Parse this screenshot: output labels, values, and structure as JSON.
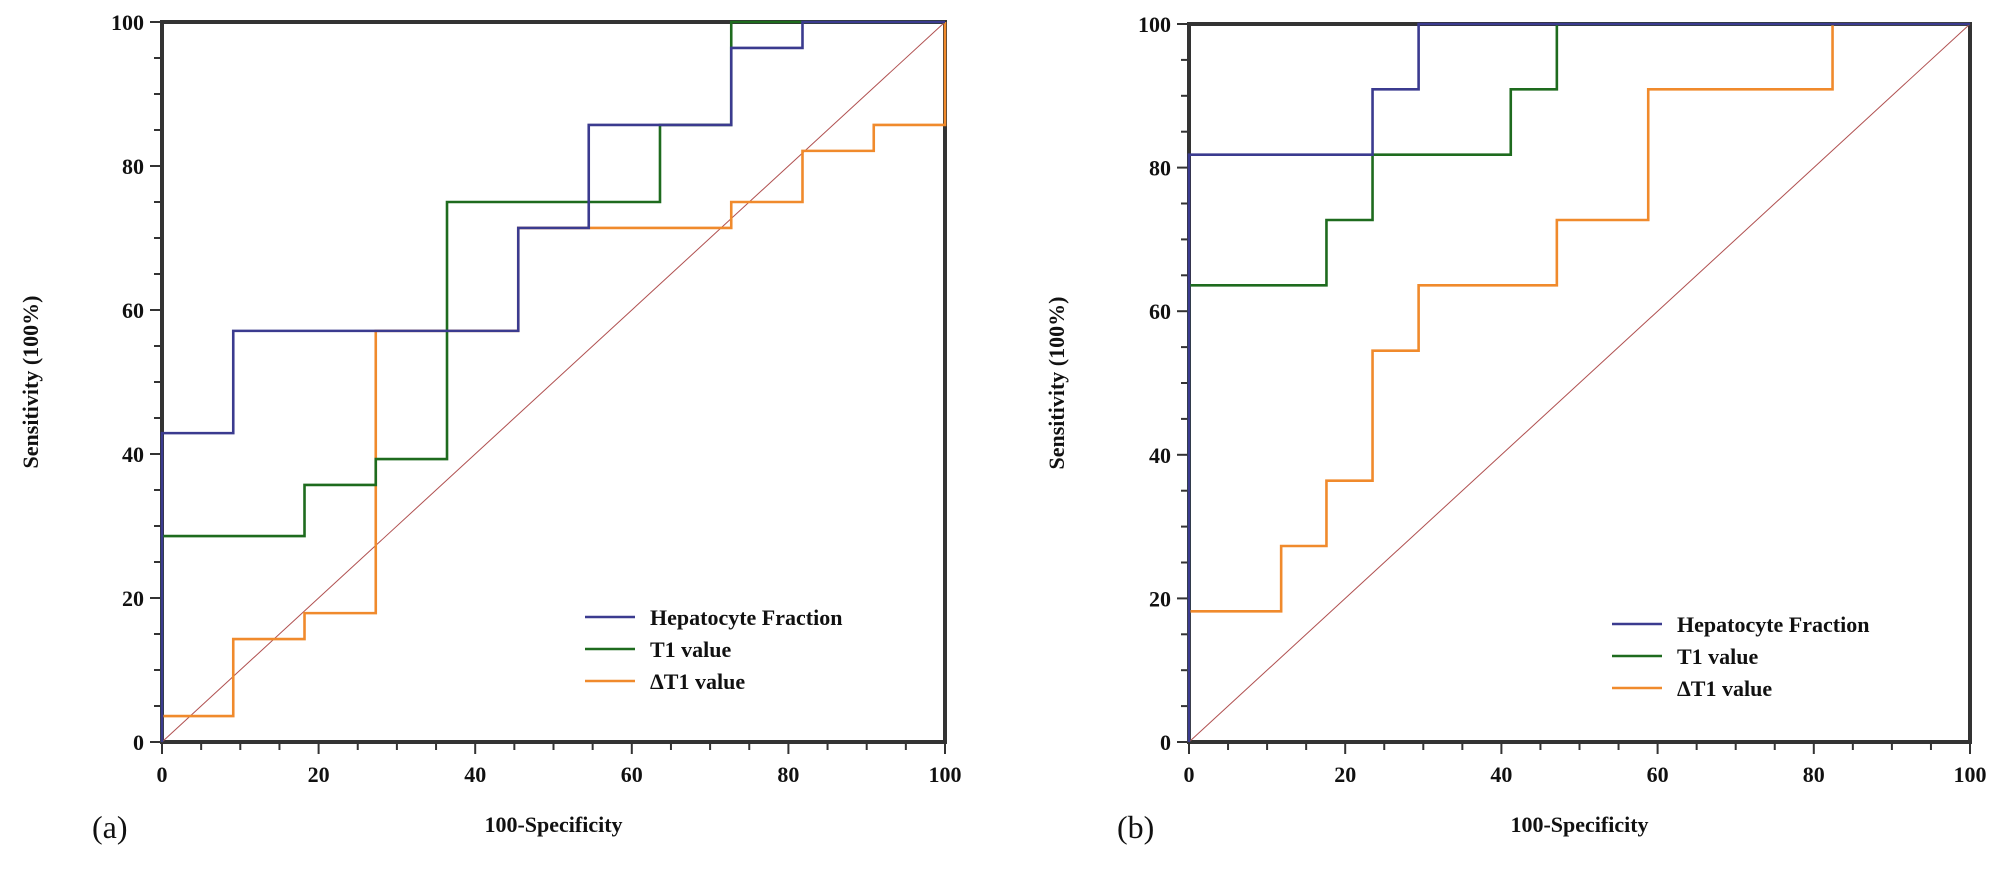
{
  "chart_data": [
    {
      "type": "line",
      "panel_label": "(a)",
      "title": "",
      "xlabel": "100-Specificity",
      "ylabel": "Sensitivity (100%)",
      "xlim": [
        0,
        100
      ],
      "ylim": [
        0,
        100
      ],
      "xticks": [
        "0",
        "20",
        "40",
        "60",
        "80",
        "100"
      ],
      "yticks": [
        "0",
        "20",
        "40",
        "60",
        "80",
        "100"
      ],
      "legend_position": "bottom-right",
      "reference_line": {
        "name": "Reference line",
        "color": "#b05050",
        "points": [
          [
            0,
            0
          ],
          [
            100,
            100
          ]
        ]
      },
      "series": [
        {
          "name": "Hepatocyte Fraction",
          "color": "#3b3b8f",
          "points": [
            [
              0,
              0
            ],
            [
              0,
              42.9
            ],
            [
              9.1,
              42.9
            ],
            [
              9.1,
              57.1
            ],
            [
              27.3,
              57.1
            ],
            [
              45.5,
              57.1
            ],
            [
              45.5,
              71.4
            ],
            [
              54.5,
              71.4
            ],
            [
              54.5,
              85.7
            ],
            [
              72.7,
              85.7
            ],
            [
              72.7,
              96.4
            ],
            [
              81.8,
              96.4
            ],
            [
              81.8,
              100
            ],
            [
              100,
              100
            ]
          ]
        },
        {
          "name": "T1 value",
          "color": "#1e6b1e",
          "points": [
            [
              0,
              0
            ],
            [
              0,
              28.6
            ],
            [
              18.2,
              28.6
            ],
            [
              18.2,
              35.7
            ],
            [
              27.3,
              35.7
            ],
            [
              27.3,
              39.3
            ],
            [
              36.4,
              39.3
            ],
            [
              36.4,
              75.0
            ],
            [
              63.6,
              75.0
            ],
            [
              63.6,
              85.7
            ],
            [
              72.7,
              85.7
            ],
            [
              72.7,
              100
            ],
            [
              100,
              100
            ]
          ]
        },
        {
          "name": "ΔT1 value",
          "color": "#f08a2c",
          "points": [
            [
              0,
              0
            ],
            [
              0,
              3.6
            ],
            [
              9.1,
              3.6
            ],
            [
              9.1,
              14.3
            ],
            [
              18.2,
              14.3
            ],
            [
              18.2,
              17.9
            ],
            [
              27.3,
              17.9
            ],
            [
              27.3,
              57.1
            ],
            [
              45.5,
              57.1
            ],
            [
              45.5,
              71.4
            ],
            [
              72.7,
              71.4
            ],
            [
              72.7,
              75.0
            ],
            [
              81.8,
              75.0
            ],
            [
              81.8,
              82.1
            ],
            [
              90.9,
              82.1
            ],
            [
              90.9,
              85.7
            ],
            [
              100,
              85.7
            ],
            [
              100,
              100
            ]
          ]
        }
      ]
    },
    {
      "type": "line",
      "panel_label": "(b)",
      "title": "",
      "xlabel": "100-Specificity",
      "ylabel": "Sensitivity (100%)",
      "xlim": [
        0,
        100
      ],
      "ylim": [
        0,
        100
      ],
      "xticks": [
        "0",
        "20",
        "40",
        "60",
        "80",
        "100"
      ],
      "yticks": [
        "0",
        "20",
        "40",
        "60",
        "80",
        "100"
      ],
      "legend_position": "bottom-right",
      "reference_line": {
        "name": "Reference line",
        "color": "#b05050",
        "points": [
          [
            0,
            0
          ],
          [
            100,
            100
          ]
        ]
      },
      "series": [
        {
          "name": "Hepatocyte Fraction",
          "color": "#3b3b8f",
          "points": [
            [
              0,
              0
            ],
            [
              0,
              81.8
            ],
            [
              23.5,
              81.8
            ],
            [
              23.5,
              90.9
            ],
            [
              29.4,
              90.9
            ],
            [
              29.4,
              100
            ],
            [
              100,
              100
            ]
          ]
        },
        {
          "name": "T1 value",
          "color": "#1e6b1e",
          "points": [
            [
              0,
              0
            ],
            [
              0,
              63.6
            ],
            [
              17.6,
              63.6
            ],
            [
              17.6,
              72.7
            ],
            [
              23.5,
              72.7
            ],
            [
              23.5,
              81.8
            ],
            [
              41.2,
              81.8
            ],
            [
              41.2,
              90.9
            ],
            [
              47.1,
              90.9
            ],
            [
              47.1,
              100
            ],
            [
              100,
              100
            ]
          ]
        },
        {
          "name": "ΔT1 value",
          "color": "#f08a2c",
          "points": [
            [
              0,
              0
            ],
            [
              0,
              18.2
            ],
            [
              11.8,
              18.2
            ],
            [
              11.8,
              27.3
            ],
            [
              17.6,
              27.3
            ],
            [
              17.6,
              36.4
            ],
            [
              23.5,
              36.4
            ],
            [
              23.5,
              54.5
            ],
            [
              29.4,
              54.5
            ],
            [
              29.4,
              63.6
            ],
            [
              47.1,
              63.6
            ],
            [
              47.1,
              72.7
            ],
            [
              58.8,
              72.7
            ],
            [
              58.8,
              90.9
            ],
            [
              82.4,
              90.9
            ],
            [
              82.4,
              100
            ],
            [
              100,
              100
            ]
          ]
        }
      ]
    }
  ]
}
